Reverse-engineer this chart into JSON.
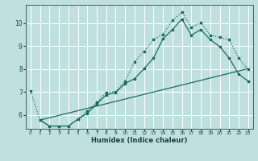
{
  "xlabel": "Humidex (Indice chaleur)",
  "bg_color": "#c0e0e0",
  "grid_color": "#ffffff",
  "line_color": "#1a6b60",
  "xlim": [
    -0.5,
    23.5
  ],
  "ylim": [
    5.4,
    10.8
  ],
  "yticks": [
    6,
    7,
    8,
    9,
    10
  ],
  "xticks": [
    0,
    1,
    2,
    3,
    4,
    5,
    6,
    7,
    8,
    9,
    10,
    11,
    12,
    13,
    14,
    15,
    16,
    17,
    18,
    19,
    20,
    21,
    22,
    23
  ],
  "line1_x": [
    0,
    1,
    2,
    3,
    4,
    5,
    6,
    7,
    8,
    9,
    10,
    11,
    12,
    13,
    14,
    15,
    16,
    17,
    18,
    19,
    20,
    21,
    22,
    23
  ],
  "line1_y": [
    7.05,
    5.78,
    5.52,
    5.52,
    5.52,
    5.82,
    6.18,
    6.55,
    6.98,
    7.02,
    7.48,
    8.32,
    8.78,
    9.28,
    9.52,
    10.12,
    10.48,
    9.82,
    10.02,
    9.48,
    9.38,
    9.28,
    8.48,
    7.98
  ],
  "line2_x": [
    1,
    2,
    3,
    4,
    5,
    6,
    7,
    8,
    9,
    10,
    11,
    12,
    13,
    14,
    15,
    16,
    17,
    18,
    19,
    20,
    21,
    22,
    23
  ],
  "line2_y": [
    5.78,
    5.52,
    5.52,
    5.52,
    5.82,
    6.08,
    6.48,
    6.88,
    6.98,
    7.38,
    7.58,
    8.02,
    8.48,
    9.32,
    9.72,
    10.18,
    9.48,
    9.72,
    9.28,
    8.98,
    8.48,
    7.78,
    7.48
  ],
  "line3_x": [
    1,
    23
  ],
  "line3_y": [
    5.78,
    8.02
  ]
}
